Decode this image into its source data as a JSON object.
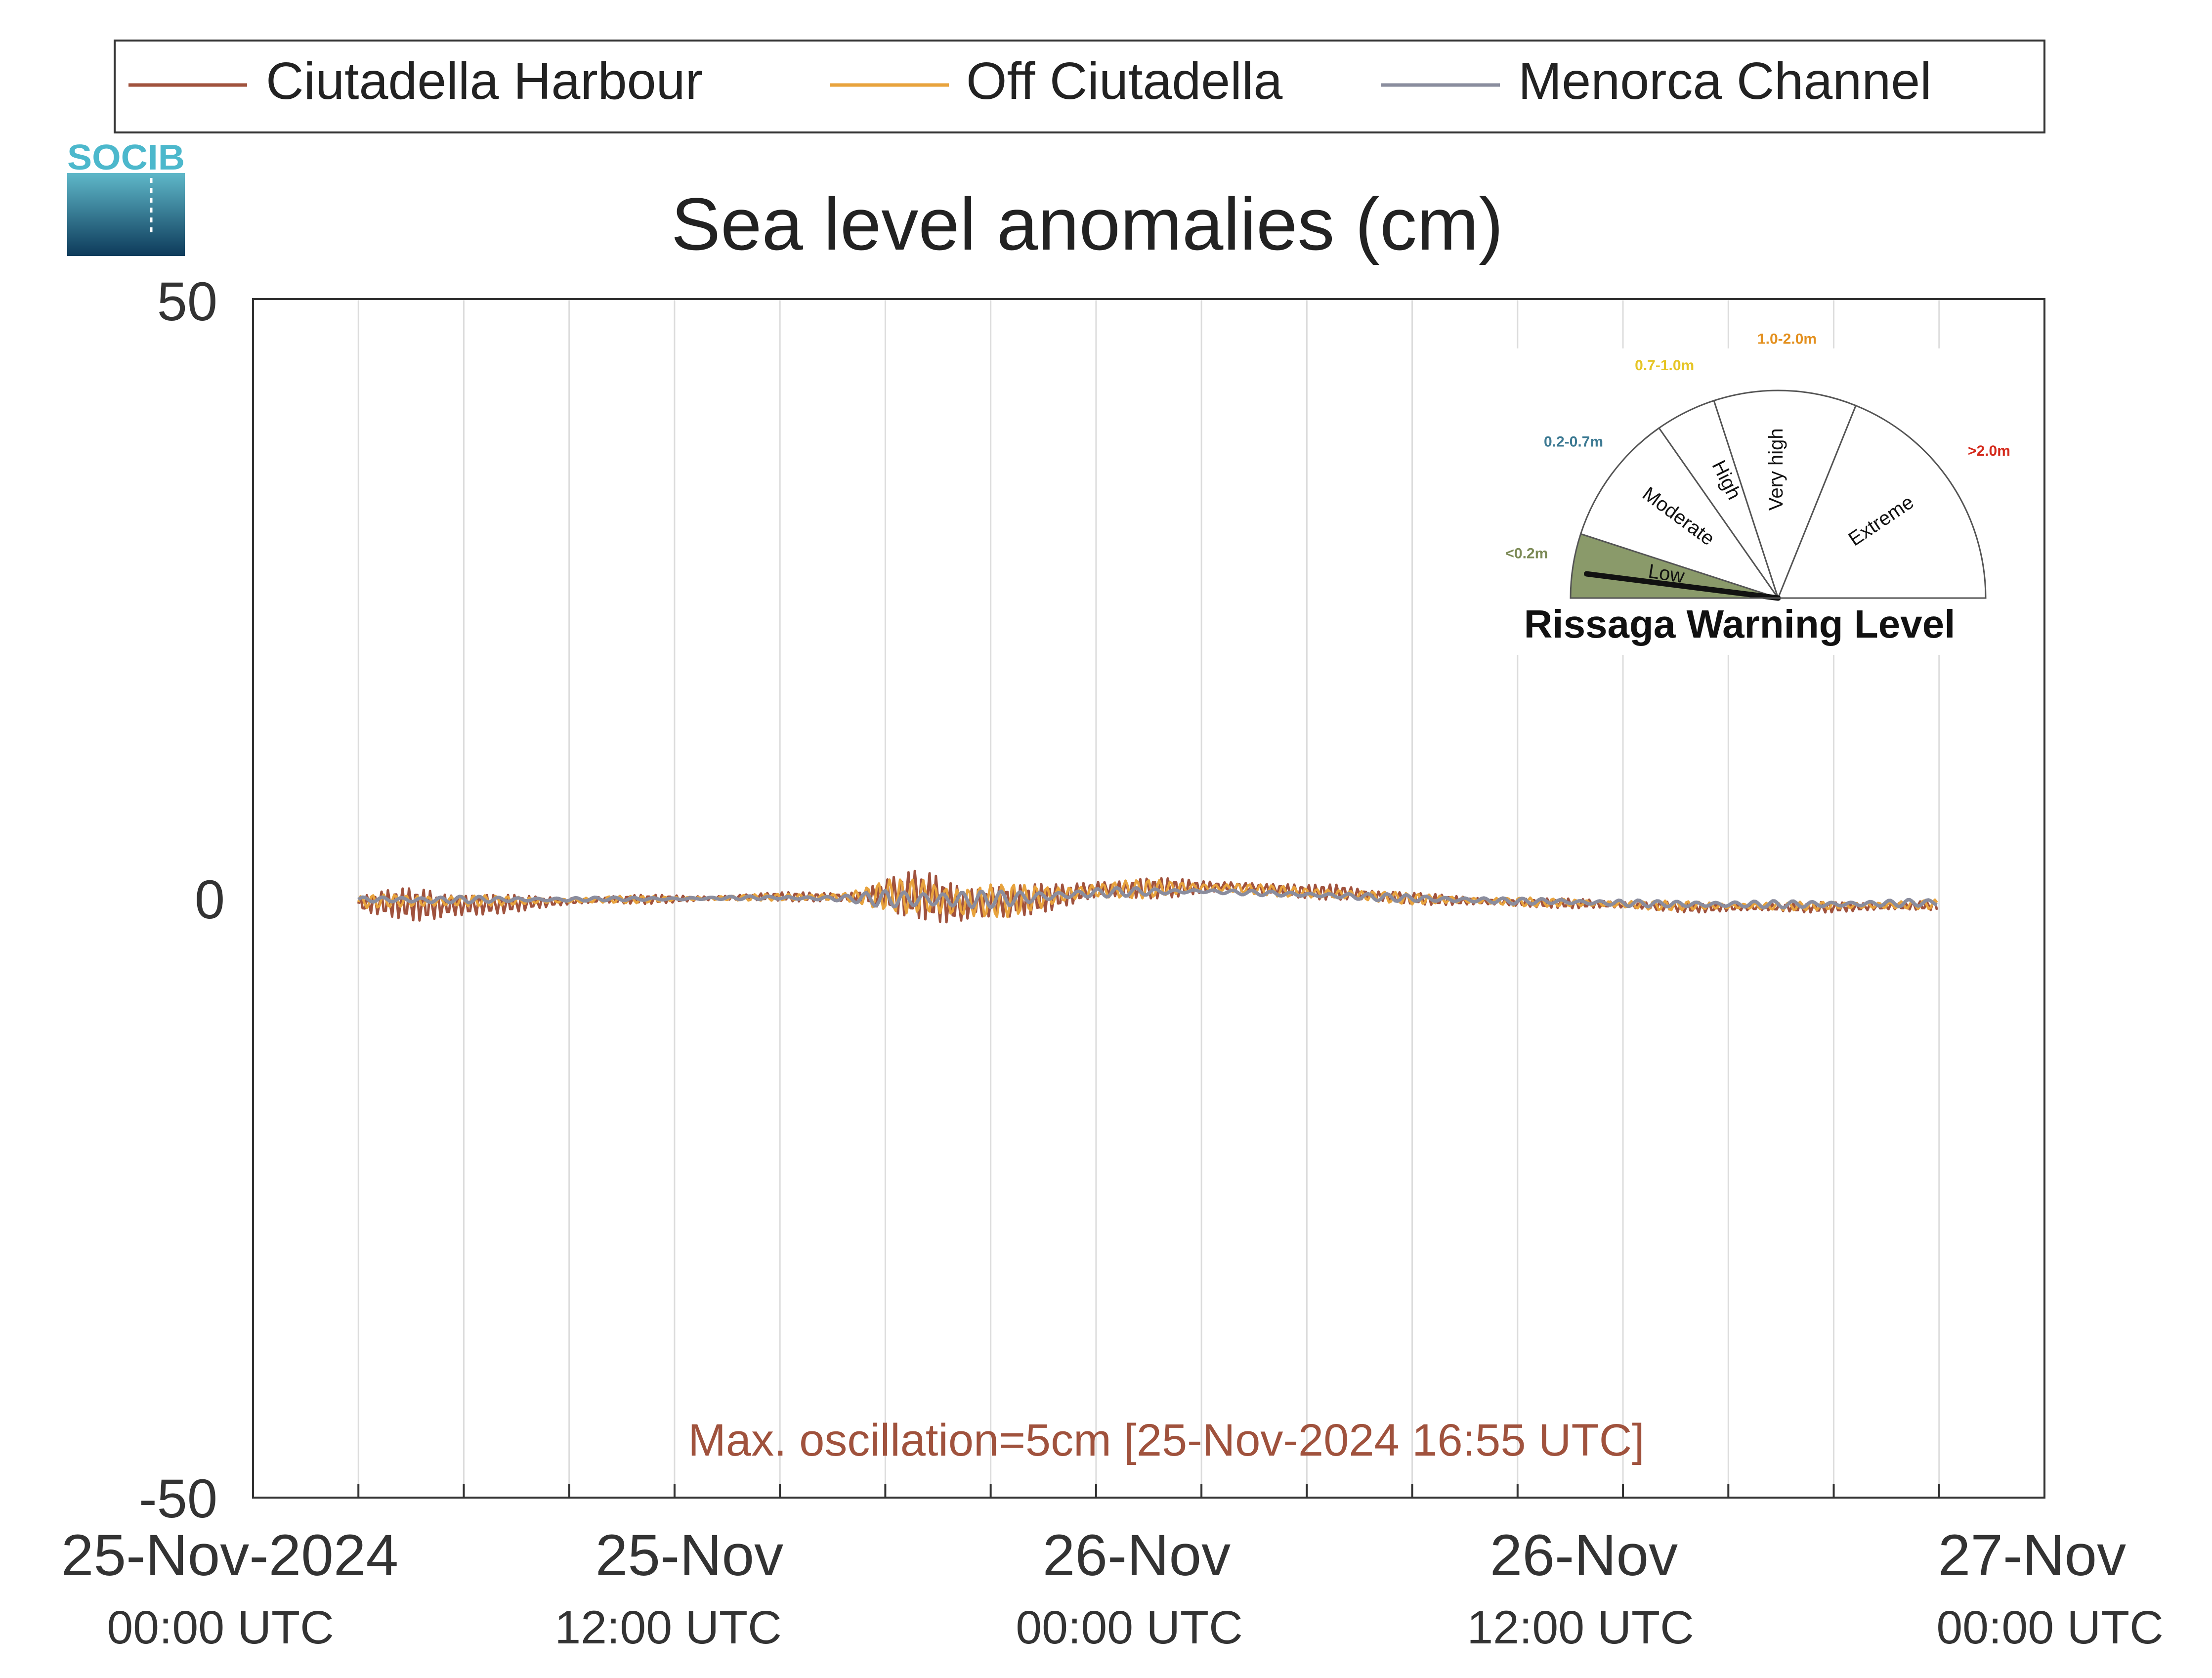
{
  "chart_data": {
    "type": "line",
    "title": "Sea level anomalies (cm)",
    "xlabel": "",
    "ylabel": "",
    "ylim": [
      -50,
      50
    ],
    "yticks": [
      "50",
      "0",
      "-50"
    ],
    "x_range_hours": [
      -3,
      48
    ],
    "x_tick_labels": [
      {
        "date": "25-Nov-2024",
        "time": "00:00 UTC"
      },
      {
        "date": "25-Nov",
        "time": "12:00 UTC"
      },
      {
        "date": "26-Nov",
        "time": "00:00 UTC"
      },
      {
        "date": "26-Nov",
        "time": "12:00 UTC"
      },
      {
        "date": "27-Nov",
        "time": "00:00 UTC"
      }
    ],
    "grid": true,
    "legend_position": "top",
    "annotation": "Max. oscillation=5cm [25-Nov-2024 16:55 UTC]",
    "annotation_color": "#a0523d",
    "series": [
      {
        "name": "Ciutadella Harbour",
        "color": "#a0523d",
        "envelope": [
          [
            0,
            -1.2,
            0.3
          ],
          [
            1,
            -1.6,
            0.8
          ],
          [
            2,
            -2.5,
            1.3
          ],
          [
            3,
            -2.2,
            1.0
          ],
          [
            4,
            -1.4,
            0.4
          ],
          [
            5,
            -0.9,
            0.2
          ],
          [
            6,
            -0.7,
            0.2
          ],
          [
            7,
            -0.5,
            0.3
          ],
          [
            8,
            -0.5,
            0.3
          ],
          [
            9,
            -0.4,
            0.3
          ],
          [
            10,
            -0.3,
            0.3
          ],
          [
            11,
            -0.2,
            0.4
          ],
          [
            12,
            -0.2,
            0.5
          ],
          [
            13,
            -0.4,
            0.6
          ],
          [
            14,
            -0.6,
            0.8
          ],
          [
            15,
            -1.2,
            1.8
          ],
          [
            16,
            -1.8,
            2.5
          ],
          [
            17,
            -3.2,
            2.2
          ],
          [
            18,
            -2.5,
            1.8
          ],
          [
            19,
            -1.5,
            1.2
          ],
          [
            20,
            -0.9,
            1.3
          ],
          [
            21,
            -0.5,
            2.0
          ],
          [
            22,
            -0.3,
            1.9
          ],
          [
            23,
            0.0,
            1.7
          ],
          [
            24,
            0.3,
            1.6
          ],
          [
            25,
            0.3,
            1.7
          ],
          [
            26,
            0.2,
            1.3
          ],
          [
            27,
            0.0,
            1.1
          ],
          [
            28,
            -0.5,
            1.5
          ],
          [
            29,
            -0.5,
            0.9
          ],
          [
            30,
            -0.5,
            0.5
          ],
          [
            31,
            -0.6,
            0.3
          ],
          [
            32,
            -0.7,
            0.2
          ],
          [
            33,
            -0.8,
            0.1
          ],
          [
            34,
            -0.8,
            0.0
          ],
          [
            35,
            -0.9,
            0.0
          ],
          [
            36,
            -1.0,
            -0.1
          ],
          [
            37,
            -1.1,
            -0.2
          ],
          [
            38,
            -1.2,
            -0.3
          ],
          [
            39,
            -1.2,
            -0.3
          ],
          [
            40,
            -1.2,
            -0.3
          ],
          [
            41,
            -1.2,
            -0.3
          ],
          [
            42,
            -1.2,
            -0.3
          ],
          [
            43,
            -1.2,
            -0.2
          ],
          [
            44,
            -1.1,
            -0.2
          ],
          [
            45,
            -1.0,
            -0.1
          ]
        ]
      },
      {
        "name": "Off Ciutadella",
        "color": "#e8a33d",
        "envelope": [
          [
            0,
            -0.8,
            0.2
          ],
          [
            1,
            -0.8,
            0.4
          ],
          [
            2,
            -1.0,
            0.5
          ],
          [
            3,
            -0.8,
            0.4
          ],
          [
            4,
            -0.6,
            0.2
          ],
          [
            5,
            -0.5,
            0.1
          ],
          [
            6,
            -0.5,
            0.1
          ],
          [
            7,
            -0.4,
            0.2
          ],
          [
            8,
            -0.4,
            0.2
          ],
          [
            9,
            -0.3,
            0.2
          ],
          [
            10,
            -0.2,
            0.2
          ],
          [
            11,
            -0.2,
            0.3
          ],
          [
            12,
            -0.2,
            0.4
          ],
          [
            13,
            -0.3,
            0.5
          ],
          [
            14,
            -0.5,
            0.7
          ],
          [
            15,
            -1.0,
            1.5
          ],
          [
            16,
            -1.6,
            2.0
          ],
          [
            17,
            -2.5,
            1.8
          ],
          [
            18,
            -2.0,
            1.5
          ],
          [
            19,
            -1.2,
            1.1
          ],
          [
            20,
            -0.6,
            1.2
          ],
          [
            21,
            -0.3,
            1.6
          ],
          [
            22,
            -0.1,
            1.6
          ],
          [
            23,
            0.2,
            1.5
          ],
          [
            24,
            0.4,
            1.4
          ],
          [
            25,
            0.3,
            1.4
          ],
          [
            26,
            0.2,
            1.1
          ],
          [
            27,
            0.0,
            0.9
          ],
          [
            28,
            -0.3,
            1.0
          ],
          [
            29,
            -0.4,
            0.7
          ],
          [
            30,
            -0.5,
            0.4
          ],
          [
            31,
            -0.5,
            0.3
          ],
          [
            32,
            -0.6,
            0.2
          ],
          [
            33,
            -0.7,
            0.1
          ],
          [
            34,
            -0.7,
            0.0
          ],
          [
            35,
            -0.8,
            0.0
          ],
          [
            36,
            -0.9,
            -0.1
          ],
          [
            37,
            -1.0,
            -0.2
          ],
          [
            38,
            -1.0,
            -0.2
          ],
          [
            39,
            -1.0,
            -0.3
          ],
          [
            40,
            -1.0,
            -0.3
          ],
          [
            41,
            -1.0,
            -0.3
          ],
          [
            42,
            -1.0,
            -0.2
          ],
          [
            43,
            -1.0,
            -0.2
          ],
          [
            44,
            -0.9,
            -0.2
          ],
          [
            45,
            -0.9,
            -0.1
          ]
        ]
      },
      {
        "name": "Menorca Channel",
        "color": "#8a8d9e",
        "envelope": [
          [
            0,
            -0.3,
            0.1
          ],
          [
            1,
            -0.4,
            0.2
          ],
          [
            2,
            -0.5,
            0.2
          ],
          [
            3,
            -0.4,
            0.2
          ],
          [
            4,
            -0.3,
            0.1
          ],
          [
            5,
            -0.3,
            0.1
          ],
          [
            6,
            -0.3,
            0.1
          ],
          [
            7,
            -0.2,
            0.1
          ],
          [
            8,
            -0.2,
            0.1
          ],
          [
            9,
            -0.2,
            0.1
          ],
          [
            10,
            -0.1,
            0.1
          ],
          [
            11,
            -0.1,
            0.2
          ],
          [
            12,
            -0.1,
            0.2
          ],
          [
            13,
            -0.2,
            0.2
          ],
          [
            14,
            -0.3,
            0.3
          ],
          [
            15,
            -0.8,
            0.7
          ],
          [
            16,
            -1.0,
            0.8
          ],
          [
            17,
            -1.0,
            0.8
          ],
          [
            18,
            -0.8,
            0.6
          ],
          [
            19,
            -0.5,
            0.6
          ],
          [
            20,
            -0.2,
            0.7
          ],
          [
            21,
            0.0,
            0.9
          ],
          [
            22,
            0.2,
            0.9
          ],
          [
            23,
            0.3,
            0.8
          ],
          [
            24,
            0.4,
            0.8
          ],
          [
            25,
            0.3,
            0.7
          ],
          [
            26,
            0.2,
            0.6
          ],
          [
            27,
            0.1,
            0.5
          ],
          [
            28,
            -0.1,
            0.5
          ],
          [
            29,
            -0.2,
            0.4
          ],
          [
            30,
            -0.3,
            0.3
          ],
          [
            31,
            -0.4,
            0.2
          ],
          [
            32,
            -0.4,
            0.1
          ],
          [
            33,
            -0.5,
            0.0
          ],
          [
            34,
            -0.5,
            0.0
          ],
          [
            35,
            -0.6,
            -0.1
          ],
          [
            36,
            -0.7,
            -0.1
          ],
          [
            37,
            -0.7,
            -0.2
          ],
          [
            38,
            -0.8,
            -0.2
          ],
          [
            39,
            -0.8,
            -0.2
          ],
          [
            40,
            -0.8,
            -0.2
          ],
          [
            41,
            -0.8,
            -0.2
          ],
          [
            42,
            -0.8,
            -0.2
          ],
          [
            43,
            -0.7,
            -0.2
          ],
          [
            44,
            -0.7,
            -0.1
          ],
          [
            45,
            -0.6,
            -0.1
          ]
        ]
      }
    ]
  },
  "logo": {
    "text": "SOCIB"
  },
  "gauge": {
    "title": "Rissaga Warning Level",
    "current_level": "Low",
    "current_fraction": 0.1,
    "sectors": [
      {
        "label": "Low",
        "range": "<0.2m",
        "range_color": "#7c8a56",
        "fill": "#8a9a6a"
      },
      {
        "label": "Moderate",
        "range": "0.2-0.7m",
        "range_color": "#3d7a93",
        "fill": "#ffffff"
      },
      {
        "label": "High",
        "range": "0.7-1.0m",
        "range_color": "#e6c526",
        "fill": "#ffffff"
      },
      {
        "label": "Very high",
        "range": "1.0-2.0m",
        "range_color": "#e3901f",
        "fill": "#ffffff"
      },
      {
        "label": "Extreme",
        "range": ">2.0m",
        "range_color": "#d42a1c",
        "fill": "#ffffff"
      }
    ]
  }
}
